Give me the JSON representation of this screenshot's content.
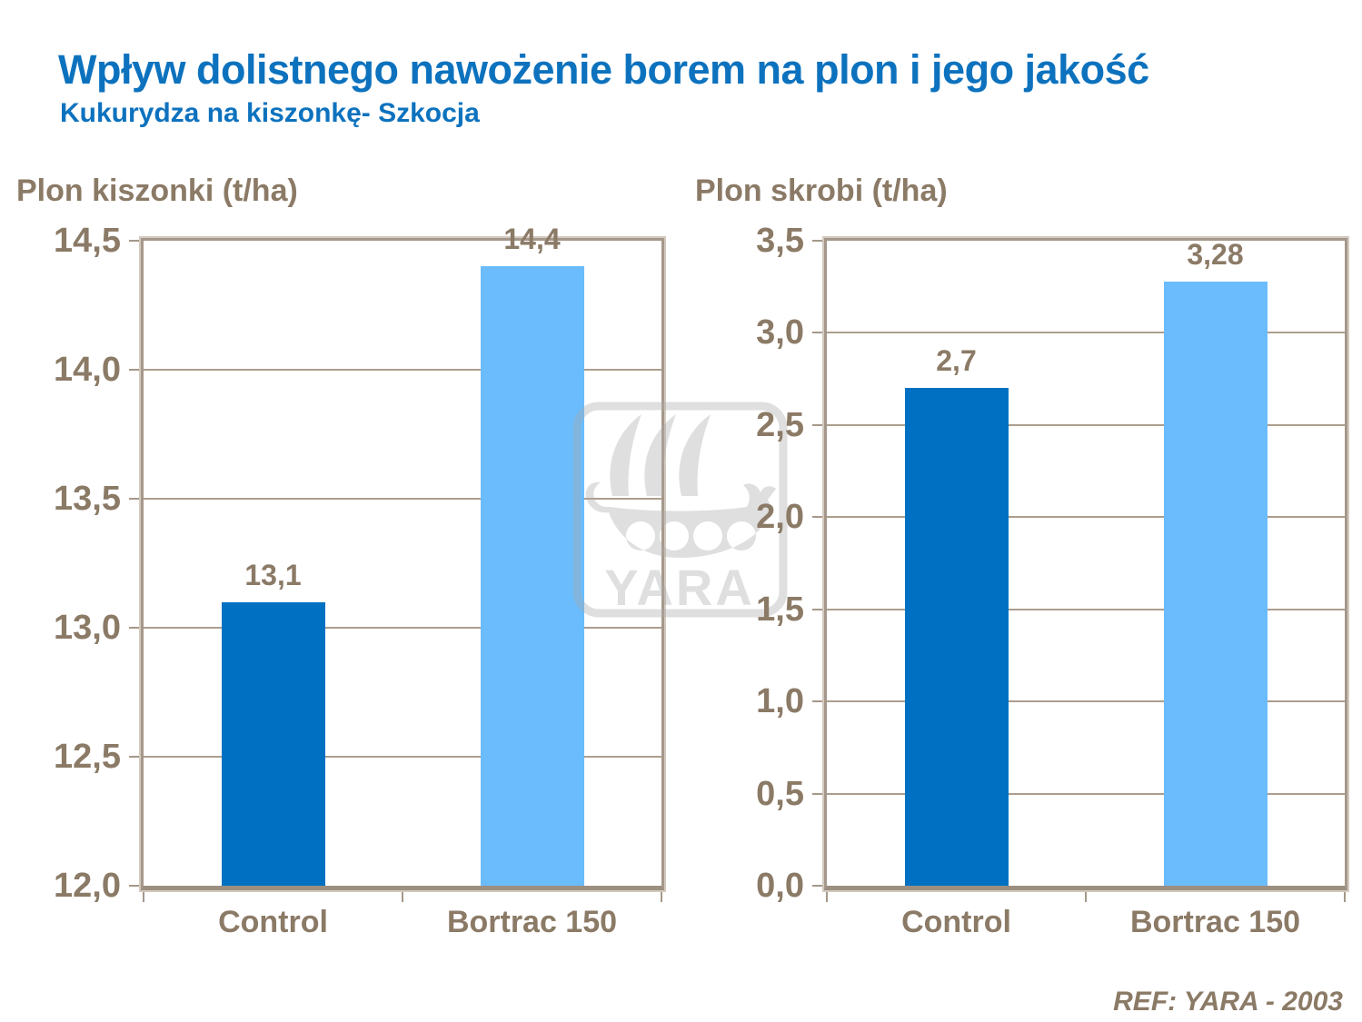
{
  "title": "Wpływ dolistnego nawożenie borem na plon i jego jakość",
  "subtitle": "Kukurydza na kiszonkę- Szkocja",
  "ref": "REF: YARA - 2003",
  "watermark": {
    "label": "YARA",
    "icon": "viking-ship-logo"
  },
  "colors": {
    "title_blue": "#0D72BE",
    "text_brown": "#8B7A66",
    "bar_dark": "#0071C2",
    "bar_light": "#6ABCFC",
    "grid": "#AC9E8E",
    "border": "#A5988A",
    "border_halo": "#D3CABF",
    "axis_bottom": "#9C8F80",
    "watermark_gray": "rgba(172,172,172,0.38)"
  },
  "chart_data": [
    {
      "type": "bar",
      "title": "Plon kiszonki (t/ha)",
      "categories": [
        "Control",
        "Bortrac 150"
      ],
      "values": [
        13.1,
        14.4
      ],
      "value_labels": [
        "13,1",
        "14,4"
      ],
      "bar_color_keys": [
        "bar_dark",
        "bar_light"
      ],
      "xlabel": "",
      "ylabel": "Plon kiszonki (t/ha)",
      "ylim": [
        12.0,
        14.5
      ],
      "ytick_step": 0.5,
      "ytick_labels": [
        "14,5",
        "14,0",
        "13,5",
        "13,0",
        "12,5",
        "12,0"
      ],
      "grid": true,
      "legend": false
    },
    {
      "type": "bar",
      "title": "Plon skrobi (t/ha)",
      "categories": [
        "Control",
        "Bortrac 150"
      ],
      "values": [
        2.7,
        3.28
      ],
      "value_labels": [
        "2,7",
        "3,28"
      ],
      "bar_color_keys": [
        "bar_dark",
        "bar_light"
      ],
      "xlabel": "",
      "ylabel": "Plon skrobi (t/ha)",
      "ylim": [
        0.0,
        3.5
      ],
      "ytick_step": 0.5,
      "ytick_labels": [
        "3,5",
        "3,0",
        "2,5",
        "2,0",
        "1,5",
        "1,0",
        "0,5",
        "0,0"
      ],
      "grid": true,
      "legend": false
    }
  ]
}
